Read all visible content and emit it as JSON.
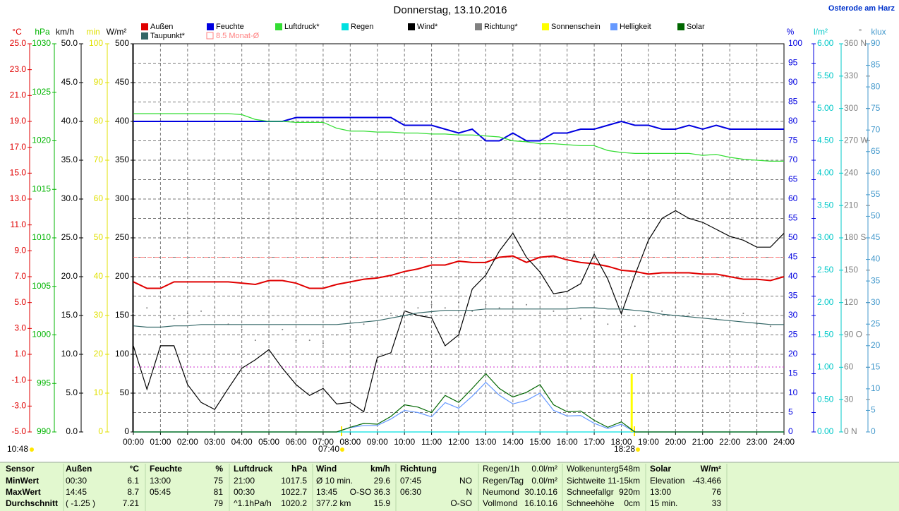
{
  "chart_data": {
    "type": "line",
    "title": "Donnerstag, 13.10.2016",
    "location": "Osterode am Harz",
    "x": [
      0,
      0.5,
      1,
      1.5,
      2,
      2.5,
      3,
      3.5,
      4,
      4.5,
      5,
      5.5,
      6,
      6.5,
      7,
      7.5,
      8,
      8.5,
      9,
      9.5,
      10,
      10.5,
      11,
      11.5,
      12,
      12.5,
      13,
      13.5,
      14,
      14.5,
      15,
      15.5,
      16,
      16.5,
      17,
      17.5,
      18,
      18.5,
      19,
      19.5,
      20,
      20.5,
      21,
      21.5,
      22,
      22.5,
      23,
      23.5,
      24
    ],
    "xlim": [
      0,
      24
    ],
    "xticks": [
      {
        "value": 0,
        "label": "00:00"
      },
      {
        "value": 1,
        "label": "01:00"
      },
      {
        "value": 2,
        "label": "02:00"
      },
      {
        "value": 3,
        "label": "03:00"
      },
      {
        "value": 4,
        "label": "04:00"
      },
      {
        "value": 5,
        "label": "05:00"
      },
      {
        "value": 6,
        "label": "06:00"
      },
      {
        "value": 7,
        "label": "07:00"
      },
      {
        "value": 8,
        "label": "08:00"
      },
      {
        "value": 9,
        "label": "09:00"
      },
      {
        "value": 10,
        "label": "10:00"
      },
      {
        "value": 11,
        "label": "11:00"
      },
      {
        "value": 12,
        "label": "12:00"
      },
      {
        "value": 13,
        "label": "13:00"
      },
      {
        "value": 14,
        "label": "14:00"
      },
      {
        "value": 15,
        "label": "15:00"
      },
      {
        "value": 16,
        "label": "16:00"
      },
      {
        "value": 17,
        "label": "17:00"
      },
      {
        "value": 18,
        "label": "18:00"
      },
      {
        "value": 19,
        "label": "19:00"
      },
      {
        "value": 20,
        "label": "20:00"
      },
      {
        "value": 21,
        "label": "21:00"
      },
      {
        "value": 22,
        "label": "22:00"
      },
      {
        "value": 23,
        "label": "23:00"
      },
      {
        "value": 24,
        "label": "24:00"
      }
    ],
    "axes": [
      {
        "label": "°C",
        "color": "#e00000",
        "lim": [
          -5,
          25
        ],
        "ticks": [
          {
            "value": 25,
            "label": "25.0"
          },
          {
            "value": 23,
            "label": "23.0"
          },
          {
            "value": 21,
            "label": "21.0"
          },
          {
            "value": 19,
            "label": "19.0"
          },
          {
            "value": 17,
            "label": "17.0"
          },
          {
            "value": 15,
            "label": "15.0"
          },
          {
            "value": 13,
            "label": "13.0"
          },
          {
            "value": 11,
            "label": "11.0"
          },
          {
            "value": 9,
            "label": "9.0"
          },
          {
            "value": 7,
            "label": "7.0"
          },
          {
            "value": 5,
            "label": "5.0"
          },
          {
            "value": 3,
            "label": "3.0"
          },
          {
            "value": 1,
            "label": "1.0"
          },
          {
            "value": -1,
            "label": "-1.0"
          },
          {
            "value": -3,
            "label": "-3.0"
          },
          {
            "value": -5,
            "label": "-5.0"
          }
        ]
      },
      {
        "label": "hPa",
        "color": "#00b400",
        "lim": [
          990,
          1030
        ],
        "ticks": [
          1030,
          1025,
          1020,
          1015,
          1010,
          1005,
          1000,
          995,
          990
        ]
      },
      {
        "label": "km/h",
        "color": "#000000",
        "lim": [
          0,
          50
        ],
        "ticks": [
          {
            "value": 50,
            "label": "50.0"
          },
          {
            "value": 45,
            "label": "45.0"
          },
          {
            "value": 40,
            "label": "40.0"
          },
          {
            "value": 35,
            "label": "35.0"
          },
          {
            "value": 30,
            "label": "30.0"
          },
          {
            "value": 25,
            "label": "25.0"
          },
          {
            "value": 20,
            "label": "20.0"
          },
          {
            "value": 15,
            "label": "15.0"
          },
          {
            "value": 10,
            "label": "10.0"
          },
          {
            "value": 5,
            "label": "5.0"
          },
          {
            "value": 0,
            "label": "0.0"
          }
        ]
      },
      {
        "label": "min",
        "color": "#e0e000",
        "lim": [
          0,
          100
        ],
        "ticks": [
          100,
          90,
          80,
          70,
          60,
          50,
          40,
          30,
          20,
          10,
          0
        ]
      },
      {
        "label": "W/m²",
        "color": "#000000",
        "lim": [
          0,
          500
        ],
        "ticks": [
          500,
          450,
          400,
          350,
          300,
          250,
          200,
          150,
          100,
          50,
          0
        ]
      },
      {
        "label": "%",
        "color": "#0000e0",
        "lim": [
          0,
          100
        ],
        "ticks": [
          100,
          95,
          90,
          85,
          80,
          75,
          70,
          65,
          60,
          55,
          50,
          45,
          40,
          35,
          30,
          25,
          20,
          15,
          10,
          5,
          0
        ]
      },
      {
        "label": "l/m²",
        "color": "#00c8c8",
        "lim": [
          0,
          6
        ],
        "ticks": [
          {
            "value": 6,
            "label": "6.00"
          },
          {
            "value": 5.5,
            "label": "5.50"
          },
          {
            "value": 5,
            "label": "5.00"
          },
          {
            "value": 4.5,
            "label": "4.50"
          },
          {
            "value": 4,
            "label": "4.00"
          },
          {
            "value": 3.5,
            "label": "3.50"
          },
          {
            "value": 3,
            "label": "3.00"
          },
          {
            "value": 2.5,
            "label": "2.50"
          },
          {
            "value": 2,
            "label": "2.00"
          },
          {
            "value": 1.5,
            "label": "1.50"
          },
          {
            "value": 1,
            "label": "1.00"
          },
          {
            "value": 0.5,
            "label": "0.50"
          },
          {
            "value": 0,
            "label": "0.00"
          }
        ]
      },
      {
        "label": "°",
        "color": "#808080",
        "lim": [
          0,
          360
        ],
        "ticks": [
          {
            "value": 360,
            "label": "360 N"
          },
          330,
          300,
          {
            "value": 270,
            "label": "270 W"
          },
          240,
          210,
          {
            "value": 180,
            "label": "180 S"
          },
          150,
          120,
          {
            "value": 90,
            "label": "90 O"
          },
          60,
          30,
          {
            "value": 0,
            "label": "0 N"
          }
        ]
      },
      {
        "label": "klux",
        "color": "#4499cc",
        "lim": [
          0,
          90
        ],
        "ticks": [
          90,
          85,
          80,
          75,
          70,
          65,
          60,
          55,
          50,
          45,
          40,
          35,
          30,
          25,
          20,
          15,
          10,
          5,
          0
        ]
      }
    ],
    "series": [
      {
        "name": "Außen",
        "color": "#e00000",
        "axis": 0,
        "style": "line",
        "values": [
          6.6,
          6.1,
          6.1,
          6.6,
          6.6,
          6.6,
          6.6,
          6.6,
          6.5,
          6.4,
          6.7,
          6.7,
          6.5,
          6.1,
          6.1,
          6.4,
          6.6,
          6.8,
          6.9,
          7.1,
          7.4,
          7.6,
          7.9,
          7.9,
          8.2,
          8.1,
          8.1,
          8.5,
          8.6,
          8.1,
          8.5,
          8.6,
          8.3,
          8.1,
          8.0,
          7.8,
          7.5,
          7.4,
          7.2,
          7.3,
          7.3,
          7.3,
          7.2,
          7.2,
          7.0,
          6.8,
          6.8,
          6.7,
          7.0
        ]
      },
      {
        "name": "Feuchte",
        "color": "#0000e0",
        "axis": 5,
        "style": "line",
        "values": [
          80,
          80,
          80,
          80,
          80,
          80,
          80,
          80,
          80,
          80,
          80,
          80,
          81,
          81,
          81,
          81,
          81,
          81,
          81,
          81,
          79,
          79,
          79,
          78,
          77,
          78,
          75,
          75,
          77,
          75,
          75,
          77,
          77,
          78,
          78,
          79,
          80,
          79,
          79,
          78,
          78,
          79,
          78,
          79,
          78,
          78,
          78,
          78,
          78
        ]
      },
      {
        "name": "Luftdruck*",
        "color": "#33dd33",
        "axis": 1,
        "style": "line",
        "values": [
          1022.8,
          1022.8,
          1022.8,
          1022.8,
          1022.8,
          1022.8,
          1022.8,
          1022.8,
          1022.7,
          1022.2,
          1022.0,
          1022.0,
          1021.9,
          1021.9,
          1021.9,
          1021.3,
          1021.0,
          1021.0,
          1020.9,
          1020.9,
          1020.8,
          1020.8,
          1020.7,
          1020.7,
          1020.6,
          1020.6,
          1020.5,
          1020.4,
          1020.0,
          1019.9,
          1019.7,
          1019.7,
          1019.6,
          1019.5,
          1019.5,
          1019.0,
          1018.8,
          1018.7,
          1018.7,
          1018.7,
          1018.7,
          1018.7,
          1018.5,
          1018.6,
          1018.3,
          1018.1,
          1018.0,
          1017.9,
          1017.9
        ]
      },
      {
        "name": "Regen",
        "color": "#00e0e0",
        "axis": 6,
        "style": "line",
        "values": [
          0,
          0,
          0,
          0,
          0,
          0,
          0,
          0,
          0,
          0,
          0,
          0,
          0,
          0,
          0,
          0,
          0,
          0,
          0,
          0,
          0,
          0,
          0,
          0,
          0,
          0,
          0,
          0,
          0,
          0,
          0,
          0,
          0,
          0,
          0,
          0,
          0,
          0,
          0,
          0,
          0,
          0,
          0,
          0,
          0,
          0,
          0,
          0,
          0
        ]
      },
      {
        "name": "Wind*",
        "color": "#000000",
        "axis": 2,
        "style": "line",
        "values": [
          11.1,
          5.5,
          11.1,
          11.1,
          6.1,
          3.8,
          2.9,
          5.6,
          8.2,
          9.3,
          10.6,
          8.2,
          6.1,
          4.7,
          5.6,
          3.6,
          3.8,
          2.6,
          9.6,
          10.2,
          15.6,
          15.0,
          14.7,
          11.1,
          12.5,
          18.4,
          20.2,
          23.3,
          25.6,
          22.5,
          20.6,
          17.8,
          18.1,
          19.1,
          22.9,
          19.7,
          15.2,
          20.2,
          24.7,
          27.5,
          28.5,
          27.5,
          27.0,
          26.1,
          25.2,
          24.7,
          23.8,
          23.8,
          25.6
        ]
      },
      {
        "name": "Richtung*",
        "color": "#808080",
        "axis": 7,
        "style": "dots",
        "values": [
          110,
          115,
          115,
          105,
          110,
          112,
          115,
          100,
          95,
          85,
          90,
          95,
          85,
          85,
          82,
          90,
          95,
          100,
          100,
          110,
          112,
          115,
          118,
          115,
          120,
          112,
          118,
          115,
          120,
          118,
          110,
          112,
          105,
          105,
          108,
          100,
          95,
          98,
          105,
          112,
          115,
          110,
          108,
          105,
          108,
          110,
          100,
          98,
          105
        ]
      },
      {
        "name": "Sonnenschein",
        "color": "#ffff00",
        "axis": 3,
        "style": "bar",
        "values": [
          0,
          0,
          0,
          0,
          0,
          0,
          0,
          0,
          0,
          0,
          0,
          0,
          0,
          0,
          0,
          0,
          0,
          0,
          0,
          0,
          0,
          0,
          0,
          0,
          0,
          0,
          0,
          0,
          0,
          0,
          0,
          0,
          0,
          0,
          0,
          0,
          0,
          15,
          0,
          0,
          0,
          0,
          0,
          0,
          0,
          0,
          0,
          0,
          0
        ]
      },
      {
        "name": "Helligkeit",
        "color": "#6699ff",
        "axis": 8,
        "style": "line",
        "values": [
          0,
          0,
          0,
          0,
          0,
          0,
          0,
          0,
          0,
          0,
          0,
          0,
          0,
          0,
          0,
          0,
          1,
          1.5,
          1.5,
          3,
          5,
          4.5,
          3.5,
          6.8,
          5.5,
          8.3,
          11.5,
          8.5,
          6.5,
          7.3,
          9,
          5,
          3.7,
          3.8,
          2,
          0.8,
          1.8,
          0,
          0,
          0,
          0,
          0,
          0,
          0,
          0,
          0,
          0,
          0,
          0
        ]
      },
      {
        "name": "Solar",
        "color": "#006600",
        "axis": 4,
        "style": "line",
        "values": [
          0,
          0,
          0,
          0,
          0,
          0,
          0,
          0,
          0,
          0,
          0,
          0,
          0,
          0,
          0,
          0,
          6,
          11,
          10,
          20,
          35,
          32,
          25,
          47,
          38,
          56,
          75,
          56,
          45,
          51,
          61,
          35,
          26,
          27,
          15,
          6,
          13,
          0,
          0,
          0,
          0,
          0,
          0,
          0,
          0,
          0,
          0,
          0,
          0
        ]
      },
      {
        "name": "Taupunkt*",
        "color": "#336666",
        "axis": 0,
        "style": "line",
        "values": [
          3.2,
          3.1,
          3.1,
          3.2,
          3.2,
          3.3,
          3.3,
          3.3,
          3.3,
          3.3,
          3.3,
          3.3,
          3.3,
          3.3,
          3.3,
          3.3,
          3.4,
          3.5,
          3.6,
          3.8,
          4.0,
          4.2,
          4.3,
          4.4,
          4.4,
          4.4,
          4.5,
          4.5,
          4.5,
          4.5,
          4.5,
          4.5,
          4.5,
          4.6,
          4.6,
          4.5,
          4.5,
          4.4,
          4.3,
          4.1,
          4.0,
          3.9,
          3.8,
          3.7,
          3.6,
          3.5,
          3.4,
          3.3,
          3.3
        ]
      }
    ],
    "monthly_avg": 8.5,
    "monthly_avg_label": "8.5 Monat-Ø",
    "monthly_avg_color": "#ff8080",
    "daylength": "10:48",
    "sunrise": "07:40",
    "sunset": "18:28",
    "grid": true
  },
  "table": {
    "rows": [
      [
        "Sensor",
        "Außen",
        "°C",
        "Feuchte",
        "%",
        "Luftdruck",
        "hPa",
        "Wind",
        "km/h",
        "Richtung",
        null,
        "Regen/1h",
        "0.0l/m²",
        "Wolkenunterg",
        "548m",
        "Solar",
        "W/m²"
      ],
      [
        "MinWert",
        "00:30",
        "6.1",
        "13:00",
        "75",
        "21:00",
        "1017.5",
        "Ø 10 min.",
        "29.6",
        "07:45",
        "NO",
        "Regen/Tag",
        "0.0l/m²",
        "Sichtweite",
        "11-15km",
        "Elevation",
        "-43.466"
      ],
      [
        "MaxWert",
        "14:45",
        "8.7",
        "05:45",
        "81",
        "00:30",
        "1022.7",
        "13:45",
        "O-SO 36.3",
        "06:30",
        "N",
        "Neumond",
        "30.10.16",
        "Schneefallgr",
        "920m",
        "13:00",
        "76"
      ],
      [
        "Durchschnitt",
        "( -1.25 )",
        "7.21",
        null,
        "79",
        "^1.1hPa/h",
        "1020.2",
        "377.2 km",
        "15.9",
        null,
        "O-SO",
        "Vollmond",
        "16.10.16",
        "Schneehöhe",
        "0cm",
        "15 min.",
        "33"
      ]
    ]
  }
}
